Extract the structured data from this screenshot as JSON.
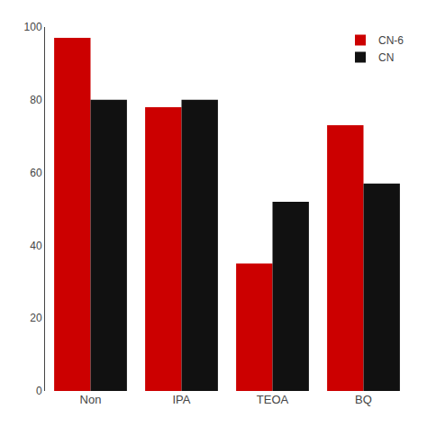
{
  "chart_data": {
    "type": "bar",
    "categories": [
      "Non",
      "IPA",
      "TEOA",
      "BQ"
    ],
    "series": [
      {
        "name": "CN-6",
        "color": "#CC0000",
        "values": [
          97,
          78,
          35,
          73
        ]
      },
      {
        "name": "CN",
        "color": "#111111",
        "values": [
          80,
          80,
          52,
          57
        ]
      }
    ],
    "ylim": [
      0,
      100
    ],
    "yticks": [
      0,
      20,
      40,
      60,
      80,
      100
    ],
    "grid": false,
    "legend": "upper right"
  }
}
